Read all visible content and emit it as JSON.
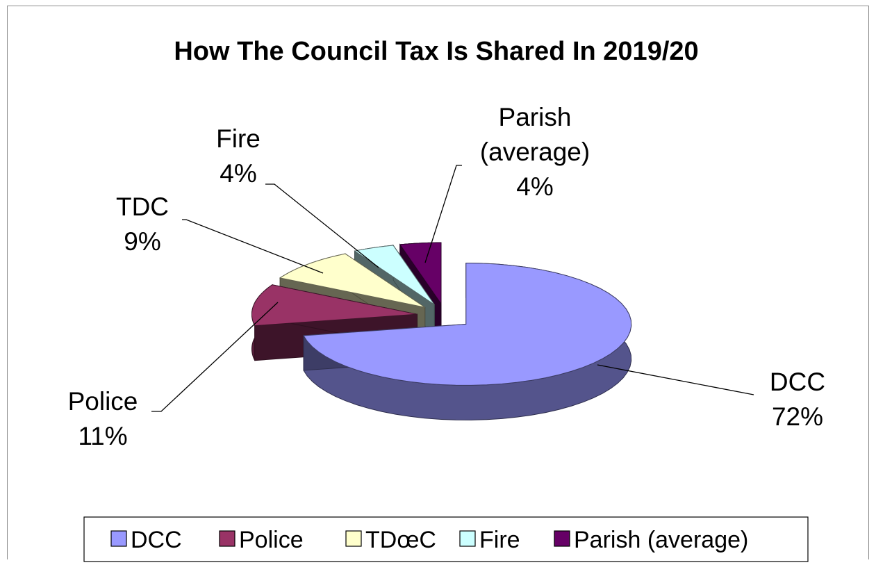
{
  "chart_data": {
    "type": "pie",
    "title": "How The Council Tax Is Shared In 2019/20",
    "series": [
      {
        "name": "DCC",
        "label": "DCC",
        "percent_label": "72%",
        "value": 72,
        "color": "#9999ff"
      },
      {
        "name": "Police",
        "label": "Police",
        "percent_label": "11%",
        "value": 11,
        "color": "#993366"
      },
      {
        "name": "TDC",
        "label": "TDC",
        "percent_label": "9%",
        "value": 9,
        "color": "#ffffcc"
      },
      {
        "name": "Fire",
        "label": "Fire",
        "percent_label": "4%",
        "value": 4,
        "color": "#ccffff"
      },
      {
        "name": "Parish (average)",
        "label": "Parish\n(average)",
        "percent_label": "4%",
        "value": 4,
        "color": "#660066"
      }
    ],
    "exploded": true,
    "three_d": true,
    "legend": {
      "position": "bottom",
      "items": [
        "DCC",
        "Police",
        "TDœC",
        "Fire",
        "Parish (average)"
      ]
    }
  }
}
